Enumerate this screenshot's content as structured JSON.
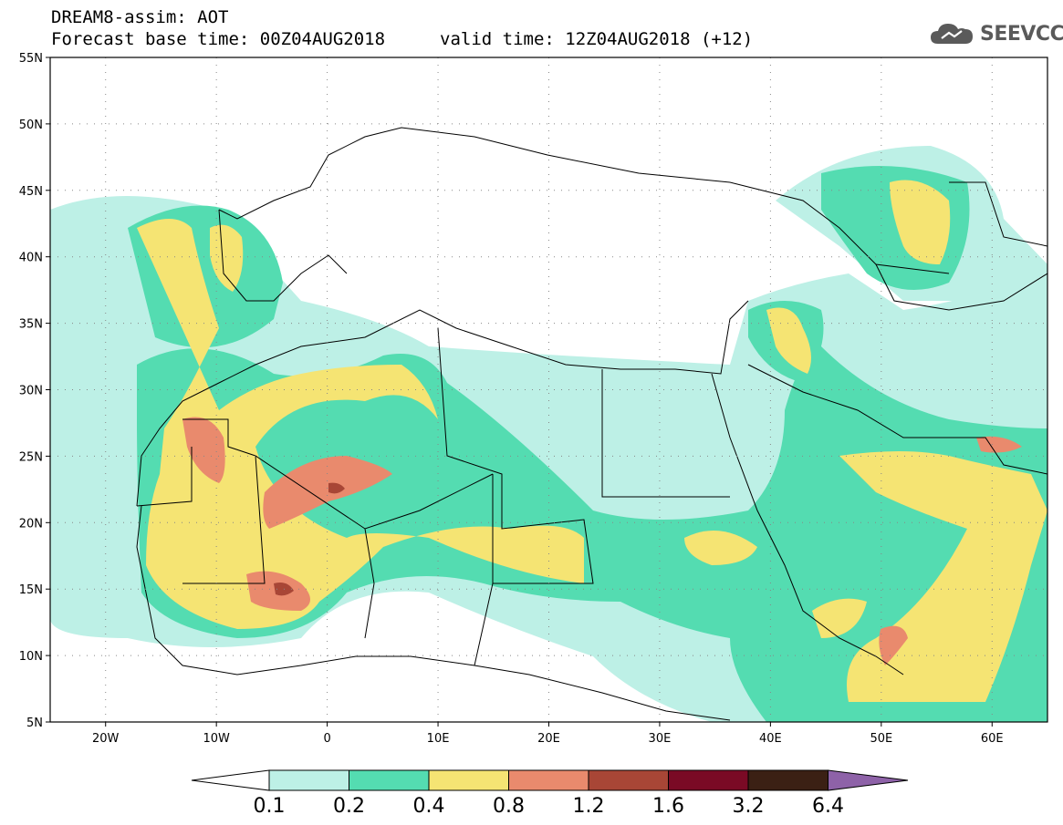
{
  "header": {
    "title": "DREAM8-assim: AOT",
    "base_time": "Forecast base time: 00Z04AUG2018",
    "valid_time": "valid time: 12Z04AUG2018 (+12)"
  },
  "logo": {
    "text": "SEEVCCC",
    "icon": "cloud-icon"
  },
  "map": {
    "lat_labels": [
      "55N",
      "50N",
      "45N",
      "40N",
      "35N",
      "30N",
      "25N",
      "20N",
      "15N",
      "10N",
      "5N"
    ],
    "lat_values": [
      55,
      50,
      45,
      40,
      35,
      30,
      25,
      20,
      15,
      10,
      5
    ],
    "lon_labels": [
      "20W",
      "10W",
      "0",
      "10E",
      "20E",
      "30E",
      "40E",
      "50E",
      "60E"
    ],
    "lon_values": [
      -20,
      -10,
      0,
      10,
      20,
      30,
      40,
      50,
      60
    ],
    "extent": {
      "lon_min": -25,
      "lon_max": 65,
      "lat_min": 5,
      "lat_max": 55
    }
  },
  "colorbar": {
    "labels": [
      "0.1",
      "0.2",
      "0.4",
      "0.8",
      "1.2",
      "1.6",
      "3.2",
      "6.4"
    ],
    "colors": [
      "#ffffff",
      "#bdf0e6",
      "#54dcb1",
      "#f5e473",
      "#e98a6d",
      "#a84636",
      "#7a0a25",
      "#3b2014",
      "#8e62a8"
    ]
  },
  "field_colors": {
    "l1": "#bdf0e6",
    "l2": "#54dcb1",
    "l3": "#f5e473",
    "l4": "#e98a6d",
    "l5": "#a84636"
  }
}
